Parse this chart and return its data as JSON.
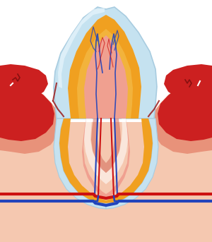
{
  "bg_color": "#ffffff",
  "skin_color": "#f5c8b0",
  "gum_pink": "#e8927a",
  "gum_red": "#cc2020",
  "gum_dark_red": "#aa1010",
  "enamel_blue": "#c5e2f0",
  "enamel_white": "#e8f5fc",
  "dentin_orange": "#f0a020",
  "dentin_yellow": "#f5c050",
  "pulp_pink": "#f0a090",
  "pulp_red": "#d06050",
  "root_white": "#ddeef8",
  "nerve_blue": "#2244bb",
  "nerve_red": "#cc1111",
  "blood_red": "#cc1111",
  "blood_blue": "#2244bb"
}
